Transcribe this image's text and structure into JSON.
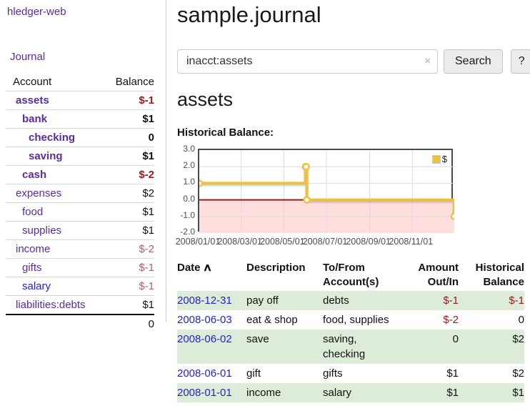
{
  "colors": {
    "purple": "#5a2ca0",
    "blue": "#2424cc",
    "neg_strong": "#971c1f",
    "neg_soft": "#b2606b",
    "row_green": "#dcecd8",
    "chart_line": "#edc240",
    "chart_negfill": "#ffdede",
    "chart_zero": "#a2181d",
    "grid": "#dcdcdc"
  },
  "sidebar": {
    "brand": "hledger-web",
    "nav_journal": "Journal",
    "accounts": {
      "col_account": "Account",
      "col_balance": "Balance",
      "rows": [
        {
          "name": "assets",
          "depth": 1,
          "bold": true,
          "balance": "$-1",
          "balance_style": "neg-strong"
        },
        {
          "name": "bank",
          "depth": 2,
          "bold": true,
          "balance": "$1",
          "balance_style": "strong"
        },
        {
          "name": "checking",
          "depth": 3,
          "bold": true,
          "balance": "0",
          "balance_style": "strong"
        },
        {
          "name": "saving",
          "depth": 3,
          "bold": true,
          "balance": "$1",
          "balance_style": "strong"
        },
        {
          "name": "cash",
          "depth": 2,
          "bold": true,
          "balance": "$-2",
          "balance_style": "neg-strong"
        },
        {
          "name": "expenses",
          "depth": 1,
          "bold": false,
          "balance": "$2",
          "balance_style": "plain"
        },
        {
          "name": "food",
          "depth": 2,
          "bold": false,
          "balance": "$1",
          "balance_style": "plain"
        },
        {
          "name": "supplies",
          "depth": 2,
          "bold": false,
          "balance": "$1",
          "balance_style": "plain"
        },
        {
          "name": "income",
          "depth": 1,
          "bold": false,
          "balance": "$-2",
          "balance_style": "neg-soft"
        },
        {
          "name": "gifts",
          "depth": 2,
          "bold": false,
          "balance": "$-1",
          "balance_style": "neg-soft"
        },
        {
          "name": "salary",
          "depth": 2,
          "bold": false,
          "balance": "$-1",
          "balance_style": "neg-soft",
          "link_style": "unvisited"
        },
        {
          "name": "liabilities:debts",
          "depth": 1,
          "bold": false,
          "balance": "$1",
          "balance_style": "plain"
        }
      ],
      "total": "0"
    }
  },
  "header": {
    "title": "sample.journal"
  },
  "search": {
    "value": "inacct:assets",
    "clear_icon": "×",
    "search_button": "Search",
    "help_button": "?"
  },
  "account_page": {
    "heading": "assets",
    "chart_title": "Historical Balance:"
  },
  "chart_data": {
    "type": "line",
    "title": "Historical Balance:",
    "step": true,
    "series": [
      {
        "name": "$",
        "color": "#edc240",
        "points": [
          [
            "2008-01-01",
            1
          ],
          [
            "2008-06-01",
            2
          ],
          [
            "2008-06-02",
            2
          ],
          [
            "2008-06-03",
            0
          ],
          [
            "2008-12-31",
            -1
          ]
        ]
      }
    ],
    "xlim": [
      "2008-01-01",
      "2008-12-31"
    ],
    "ylim": [
      -2,
      3
    ],
    "xticks": [
      "2008/01/01",
      "2008/03/01",
      "2008/05/01",
      "2008/07/01",
      "2008/09/01",
      "2008/11/01"
    ],
    "yticks": [
      "3.0",
      "2.0",
      "1.0",
      "0.0",
      "-1.0",
      "-2.0"
    ],
    "grid": true,
    "negative_region_fill": "#ffdede",
    "zero_line_color": "#a2181d",
    "legend": {
      "label": "$",
      "position": "top-right"
    }
  },
  "register": {
    "headers": [
      "Date",
      "Description",
      "To/From Account(s)",
      "Amount Out/In",
      "Historical Balance"
    ],
    "sort_icon": "∧",
    "rows": [
      {
        "date": "2008-12-31",
        "description": "pay off",
        "accounts": "debts",
        "amount": "$-1",
        "balance": "$-1"
      },
      {
        "date": "2008-06-03",
        "description": "eat & shop",
        "accounts": "food, supplies",
        "amount": "$-2",
        "balance": "0"
      },
      {
        "date": "2008-06-02",
        "description": "save",
        "accounts": "saving, checking",
        "amount": "0",
        "balance": "$2"
      },
      {
        "date": "2008-06-01",
        "description": "gift",
        "accounts": "gifts",
        "amount": "$1",
        "balance": "$2"
      },
      {
        "date": "2008-01-01",
        "description": "income",
        "accounts": "salary",
        "amount": "$1",
        "balance": "$1"
      }
    ]
  }
}
